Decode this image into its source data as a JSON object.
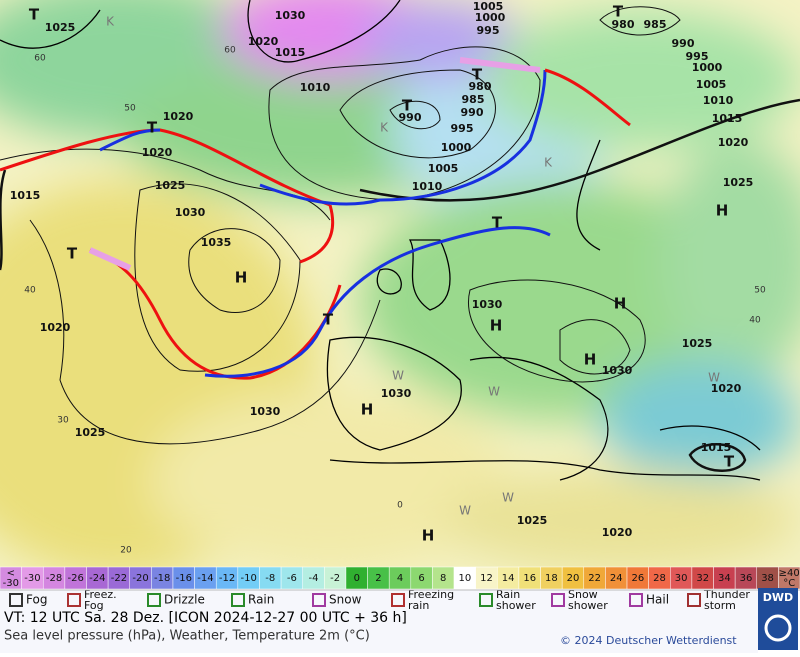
{
  "map": {
    "pressure_labels": [
      "1025",
      "1030",
      "1020",
      "1015",
      "1005",
      "1000",
      "995",
      "980",
      "985",
      "990",
      "995",
      "1000",
      "1005",
      "1010",
      "1015",
      "1020",
      "1025",
      "1010",
      "990",
      "980",
      "985",
      "990",
      "995",
      "1000",
      "1005",
      "1010",
      "1020",
      "1020",
      "1025",
      "1015",
      "1030",
      "1035",
      "1020",
      "1030",
      "1025",
      "1030",
      "1020",
      "1030",
      "1030",
      "1025",
      "1015",
      "1025",
      "1020"
    ],
    "centers": [
      "H",
      "H",
      "H",
      "H",
      "H",
      "H",
      "H",
      "T",
      "T",
      "T",
      "T",
      "T",
      "T",
      "T",
      "T",
      "T"
    ],
    "graticule_labels": [
      "60",
      "50",
      "40",
      "30",
      "20",
      "60",
      "50",
      "40",
      "0"
    ],
    "region_marks": [
      "K",
      "K",
      "K",
      "W",
      "W",
      "W",
      "W",
      "W"
    ]
  },
  "scale": {
    "labels": [
      "<",
      "-30",
      "-28",
      "-26",
      "-24",
      "-22",
      "-20",
      "-18",
      "-16",
      "-14",
      "-12",
      "-10",
      "-8",
      "-6",
      "-4",
      "-2",
      "0",
      "2",
      "4",
      "6",
      "8",
      "10",
      "12",
      "14",
      "16",
      "18",
      "20",
      "22",
      "24",
      "26",
      "28",
      "30",
      "32",
      "34",
      "36",
      "38",
      "≥40"
    ],
    "low_label": "-30",
    "unit": "°C"
  },
  "legend": [
    "Fog",
    "Freez. Fog",
    "Drizzle",
    "Rain",
    "Snow",
    "Freezing rain",
    "Rain shower",
    "Snow shower",
    "Hail",
    "Thunder storm"
  ],
  "footer": {
    "valid_time": "VT: 12 UTC Sa.  28 Dez. [ICON 2024-12-27  00 UTC + 36 h]",
    "subtitle": "Sea level pressure (hPa), Weather, Temperature 2m (°C)",
    "copyright": "© 2024 Deutscher Wetterdienst",
    "logo": "DWD"
  }
}
